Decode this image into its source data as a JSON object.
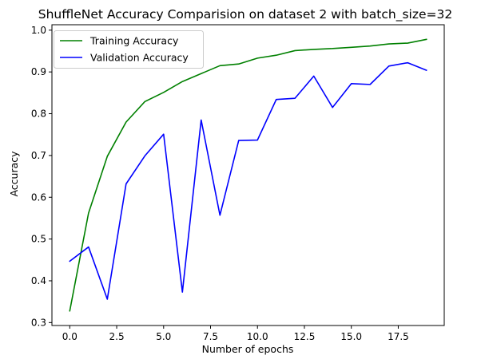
{
  "chart_data": {
    "type": "line",
    "title": "ShuffleNet Accuracy Comparision on dataset 2 with batch_size=32",
    "xlabel": "Number of epochs",
    "ylabel": "Accuracy",
    "xlim": [
      -0.95,
      19.95
    ],
    "ylim": [
      0.293,
      1.013
    ],
    "xticks": [
      0.0,
      2.5,
      5.0,
      7.5,
      10.0,
      12.5,
      15.0,
      17.5
    ],
    "xtick_labels": [
      "0.0",
      "2.5",
      "5.0",
      "7.5",
      "10.0",
      "12.5",
      "15.0",
      "17.5"
    ],
    "yticks": [
      0.3,
      0.4,
      0.5,
      0.6,
      0.7,
      0.8,
      0.9,
      1.0
    ],
    "ytick_labels": [
      "0.3",
      "0.4",
      "0.5",
      "0.6",
      "0.7",
      "0.8",
      "0.9",
      "1.0"
    ],
    "grid": false,
    "legend_position": "top-left",
    "x": [
      0,
      1,
      2,
      3,
      4,
      5,
      6,
      7,
      8,
      9,
      10,
      11,
      12,
      13,
      14,
      15,
      16,
      17,
      18,
      19
    ],
    "series": [
      {
        "name": "Training Accuracy",
        "color": "#008000",
        "values": [
          0.328,
          0.562,
          0.698,
          0.78,
          0.829,
          0.851,
          0.877,
          0.896,
          0.915,
          0.919,
          0.933,
          0.94,
          0.951,
          0.954,
          0.956,
          0.959,
          0.962,
          0.967,
          0.969,
          0.978
        ]
      },
      {
        "name": "Validation Accuracy",
        "color": "#0000ff",
        "values": [
          0.447,
          0.481,
          0.356,
          0.632,
          0.699,
          0.751,
          0.373,
          0.785,
          0.557,
          0.736,
          0.737,
          0.834,
          0.837,
          0.89,
          0.815,
          0.872,
          0.87,
          0.914,
          0.922,
          0.904
        ]
      }
    ]
  }
}
